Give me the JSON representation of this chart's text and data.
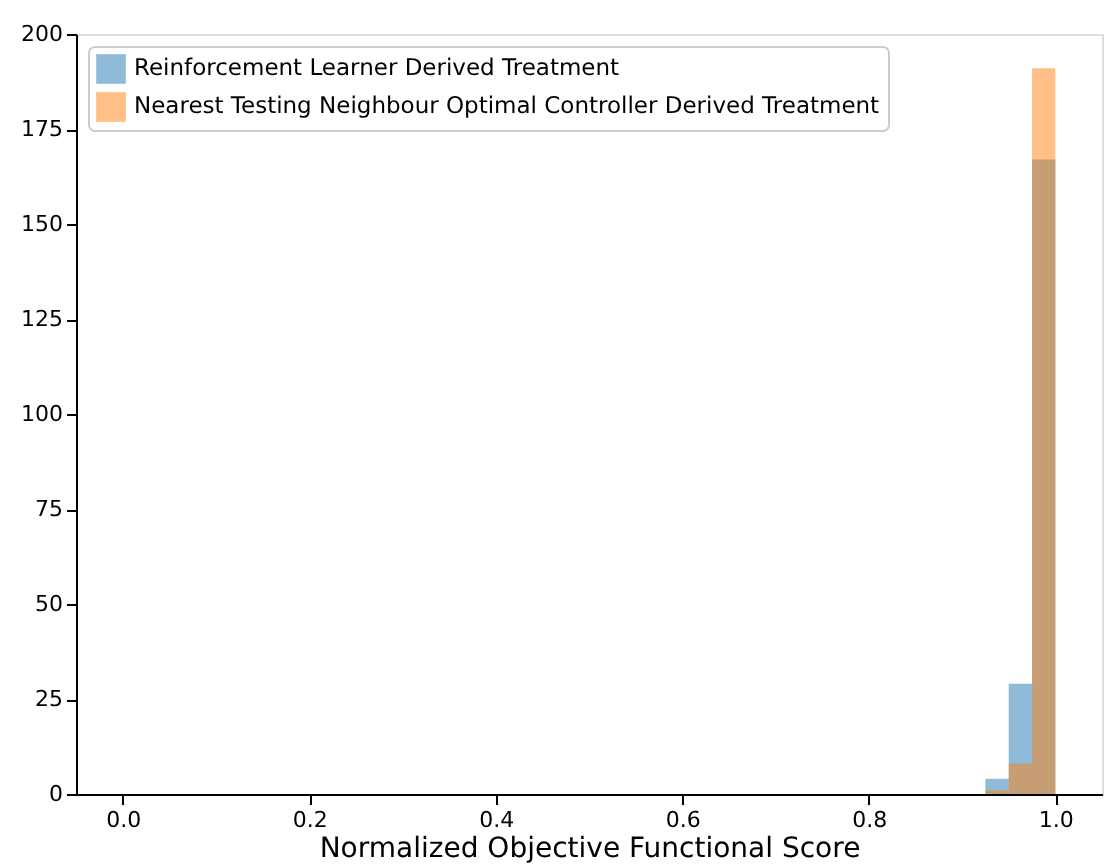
{
  "chart_data": {
    "type": "histogram",
    "xlabel": "Normalized Objective Functional Score",
    "bins": [
      0.925,
      0.95,
      0.975,
      1.0
    ],
    "series": [
      {
        "name": "Reinforcement Learner Derived Treatment",
        "color": "#1f77b4",
        "values": [
          4,
          29,
          167
        ]
      },
      {
        "name": "Nearest Testing Neighbour Optimal Controller Derived Treatment",
        "color": "#ff7f0e",
        "values": [
          1,
          8,
          191
        ]
      }
    ],
    "xlim": [
      -0.05,
      1.05
    ],
    "xticks": [
      {
        "value": 0,
        "label": "0.0"
      },
      {
        "value": 0.2,
        "label": "0.2"
      },
      {
        "value": 0.4,
        "label": "0.4"
      },
      {
        "value": 0.6,
        "label": "0.6"
      },
      {
        "value": 0.8,
        "label": "0.8"
      },
      {
        "value": 1,
        "label": "1.0"
      }
    ],
    "ylim": [
      0,
      200
    ],
    "yticks": [
      0,
      25,
      50,
      75,
      100,
      125,
      150,
      175,
      200
    ],
    "grid": false,
    "legend": "top left"
  }
}
